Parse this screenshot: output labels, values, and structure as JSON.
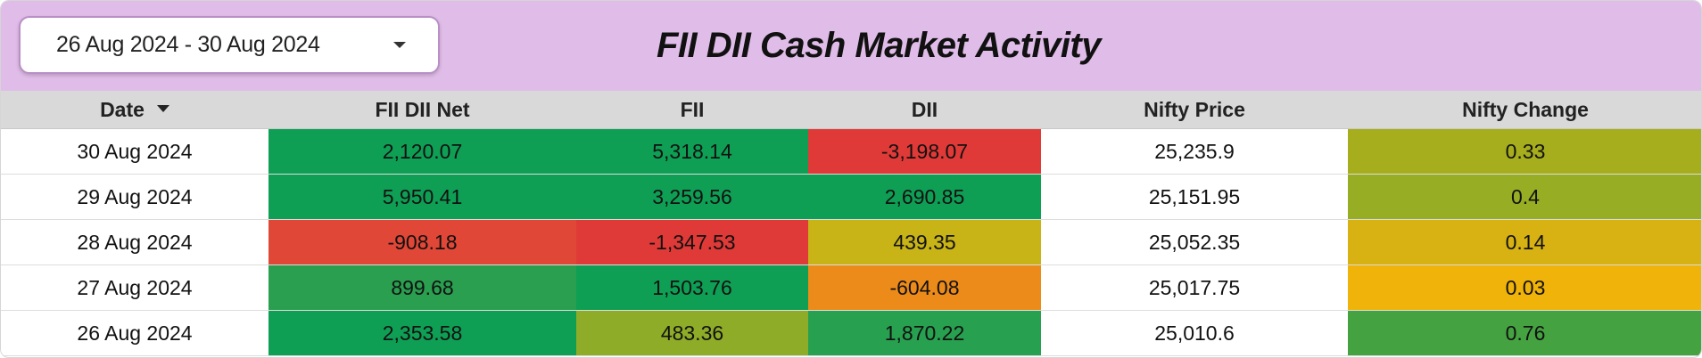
{
  "header": {
    "date_range": "26 Aug 2024 - 30 Aug 2024",
    "title": "FII DII Cash Market Activity",
    "background": "#e0bde8"
  },
  "table": {
    "columns": [
      "Date",
      "FII DII Net",
      "FII",
      "DII",
      "Nifty Price",
      "Nifty Change"
    ],
    "sort_column": "Date",
    "sort_direction": "descending",
    "rows": [
      {
        "date": "30 Aug 2024",
        "net": "2,120.07",
        "fii": "5,318.14",
        "dii": "-3,198.07",
        "price": "25,235.9",
        "change": "0.33",
        "colors": {
          "net": "#0e9f55",
          "fii": "#0e9f55",
          "dii": "#df3a37",
          "change": "#a6ae1d"
        }
      },
      {
        "date": "29 Aug 2024",
        "net": "5,950.41",
        "fii": "3,259.56",
        "dii": "2,690.85",
        "price": "25,151.95",
        "change": "0.4",
        "colors": {
          "net": "#0e9f55",
          "fii": "#0e9f55",
          "dii": "#0e9f55",
          "change": "#96ad24"
        }
      },
      {
        "date": "28 Aug 2024",
        "net": "-908.18",
        "fii": "-1,347.53",
        "dii": "439.35",
        "price": "25,052.35",
        "change": "0.14",
        "colors": {
          "net": "#e04737",
          "fii": "#df3a37",
          "dii": "#c8b417",
          "change": "#d7b212"
        }
      },
      {
        "date": "27 Aug 2024",
        "net": "899.68",
        "fii": "1,503.76",
        "dii": "-604.08",
        "price": "25,017.75",
        "change": "0.03",
        "colors": {
          "net": "#2a9f50",
          "fii": "#0e9f55",
          "dii": "#ec8b1a",
          "change": "#efb30a"
        }
      },
      {
        "date": "26 Aug 2024",
        "net": "2,353.58",
        "fii": "483.36",
        "dii": "1,870.22",
        "price": "25,010.6",
        "change": "0.76",
        "colors": {
          "net": "#0e9f55",
          "fii": "#8eac27",
          "dii": "#27a04f",
          "change": "#45a241"
        }
      }
    ]
  }
}
